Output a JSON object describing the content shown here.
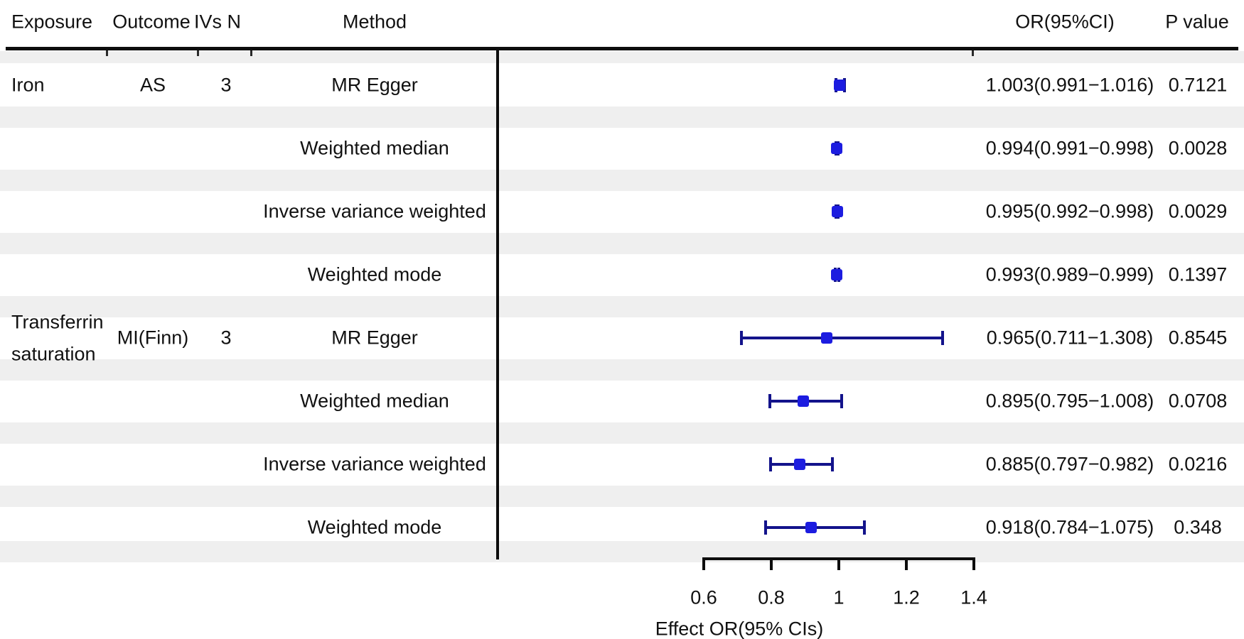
{
  "figure": {
    "background": "#ffffff",
    "box_color": "#1c1ce0",
    "ci_line_color": "#13138b",
    "zebra_band_color": "#efefef",
    "text_color": "#111111"
  },
  "table": {
    "headers": {
      "exposure": "Exposure",
      "outcome": "Outcome",
      "ivs": "IVs N",
      "method": "Method",
      "or": "OR(95%CI)",
      "p": "P value"
    }
  },
  "rows": [
    {
      "exposure_line1": "Iron",
      "exposure_line2": "",
      "outcome": "AS",
      "ivs": "3",
      "method": "MR Egger",
      "or_ci": "1.003(0.991−1.016)",
      "p": "0.7121"
    },
    {
      "method": "Weighted median",
      "or_ci": "0.994(0.991−0.998)",
      "p": "0.0028"
    },
    {
      "method": "Inverse variance weighted",
      "or_ci": "0.995(0.992−0.998)",
      "p": "0.0029"
    },
    {
      "method": "Weighted mode",
      "or_ci": "0.993(0.989−0.999)",
      "p": "0.1397"
    },
    {
      "exposure_line1": "Transferrin",
      "exposure_line2": "saturation",
      "outcome": "MI(Finn)",
      "ivs": "3",
      "method": "MR Egger",
      "or_ci": "0.965(0.711−1.308)",
      "p": "0.8545"
    },
    {
      "method": "Weighted median",
      "or_ci": "0.895(0.795−1.008)",
      "p": "0.0708"
    },
    {
      "method": "Inverse variance weighted",
      "or_ci": "0.885(0.797−0.982)",
      "p": "0.0216"
    },
    {
      "method": "Weighted mode",
      "or_ci": "0.918(0.784−1.075)",
      "p": "0.348"
    }
  ],
  "chart_data": {
    "type": "scatter",
    "variant": "forest-plot",
    "title": "",
    "xlabel": "Effect OR(95% CIs)",
    "xlim": [
      0.6,
      1.4
    ],
    "x_ticks": [
      0.6,
      0.8,
      1,
      1.2,
      1.4
    ],
    "x_tick_labels": [
      "0.6",
      "0.8",
      "1",
      "1.2",
      "1.4"
    ],
    "grid": false,
    "legend": false,
    "points": [
      {
        "exposure": "Iron",
        "outcome": "AS",
        "ivs_n": 3,
        "method": "MR Egger",
        "or": 1.003,
        "ci": [
          0.991,
          1.016
        ],
        "p": 0.7121
      },
      {
        "exposure": "Iron",
        "outcome": "AS",
        "ivs_n": 3,
        "method": "Weighted median",
        "or": 0.994,
        "ci": [
          0.991,
          0.998
        ],
        "p": 0.0028
      },
      {
        "exposure": "Iron",
        "outcome": "AS",
        "ivs_n": 3,
        "method": "Inverse variance weighted",
        "or": 0.995,
        "ci": [
          0.992,
          0.998
        ],
        "p": 0.0029
      },
      {
        "exposure": "Iron",
        "outcome": "AS",
        "ivs_n": 3,
        "method": "Weighted mode",
        "or": 0.993,
        "ci": [
          0.989,
          0.999
        ],
        "p": 0.1397
      },
      {
        "exposure": "Transferrin saturation",
        "outcome": "MI(Finn)",
        "ivs_n": 3,
        "method": "MR Egger",
        "or": 0.965,
        "ci": [
          0.711,
          1.308
        ],
        "p": 0.8545
      },
      {
        "exposure": "Transferrin saturation",
        "outcome": "MI(Finn)",
        "ivs_n": 3,
        "method": "Weighted median",
        "or": 0.895,
        "ci": [
          0.795,
          1.008
        ],
        "p": 0.0708
      },
      {
        "exposure": "Transferrin saturation",
        "outcome": "MI(Finn)",
        "ivs_n": 3,
        "method": "Inverse variance weighted",
        "or": 0.885,
        "ci": [
          0.797,
          0.982
        ],
        "p": 0.0216
      },
      {
        "exposure": "Transferrin saturation",
        "outcome": "MI(Finn)",
        "ivs_n": 3,
        "method": "Weighted mode",
        "or": 0.918,
        "ci": [
          0.784,
          1.075
        ],
        "p": 0.348
      }
    ]
  }
}
